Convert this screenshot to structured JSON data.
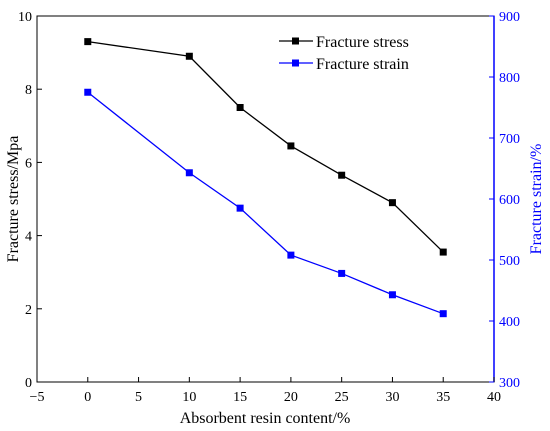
{
  "chart_data": {
    "type": "line",
    "x": [
      0,
      10,
      15,
      20,
      25,
      30,
      35
    ],
    "xlabel": "Absorbent resin content/%",
    "xlim": [
      -5,
      40
    ],
    "xticks": [
      -5,
      0,
      5,
      10,
      15,
      20,
      25,
      30,
      35,
      40
    ],
    "xtick_labels": [
      "−5",
      "0",
      "5",
      "10",
      "15",
      "20",
      "25",
      "30",
      "35",
      "40"
    ],
    "left_axis": {
      "label": "Fracture stress/Mpa",
      "lim": [
        0,
        10
      ],
      "ticks": [
        0,
        2,
        4,
        6,
        8,
        10
      ],
      "tick_labels": [
        "0",
        "2",
        "4",
        "6",
        "8",
        "10"
      ],
      "color": "#000000"
    },
    "right_axis": {
      "label": "Fracture strain/%",
      "lim": [
        300,
        900
      ],
      "ticks": [
        300,
        400,
        500,
        600,
        700,
        800,
        900
      ],
      "tick_labels": [
        "300",
        "400",
        "500",
        "600",
        "700",
        "800",
        "900"
      ],
      "color": "#0000ff"
    },
    "series": [
      {
        "name": "Fracture stress",
        "axis": "left",
        "color": "#000000",
        "marker": "square",
        "values": [
          9.3,
          8.9,
          7.5,
          6.45,
          5.65,
          4.9,
          3.55
        ]
      },
      {
        "name": "Fracture strain",
        "axis": "right",
        "color": "#0000ff",
        "marker": "square",
        "values": [
          775,
          643,
          585,
          508,
          478,
          443,
          412
        ]
      }
    ],
    "legend_position": "top-right",
    "grid": false
  }
}
